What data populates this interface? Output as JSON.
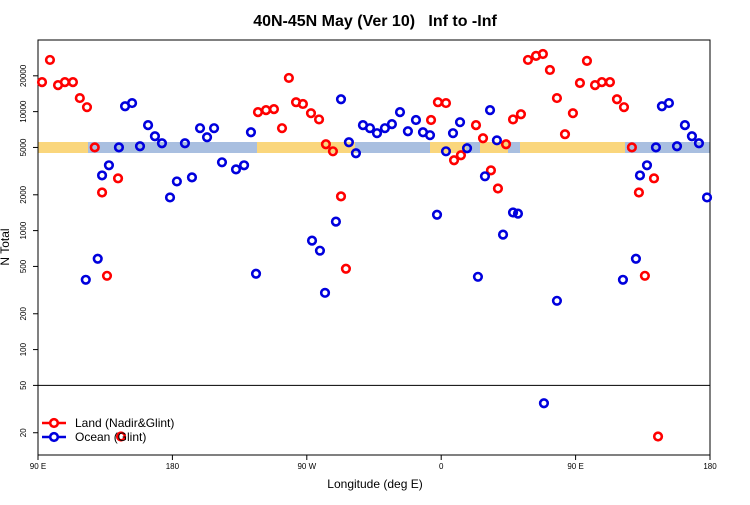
{
  "chart_data": {
    "type": "scatter",
    "title": "40N-45N May (Ver 10)   Inf to -Inf",
    "x_label": "Longitude (deg E)",
    "y_label": "N Total",
    "xlim": [
      90,
      540
    ],
    "xticks": [
      {
        "value": 90,
        "label": "90 E"
      },
      180,
      {
        "value": 270,
        "label": "90 W"
      },
      {
        "value": 360,
        "label": "0"
      },
      {
        "value": 450,
        "label": "90 E"
      },
      {
        "value": 540,
        "label": "180"
      }
    ],
    "ylim": [
      13,
      40000
    ],
    "y_log": true,
    "yticks": [
      20,
      50,
      100,
      200,
      500,
      1000,
      2000,
      5000,
      10000,
      20000
    ],
    "hline": 50,
    "legend_position": "bottomleft",
    "series": [
      {
        "name": "Land (Nadir&Glint)",
        "color": "#ff0000",
        "x": [
          92.7,
          98,
          103.4,
          108,
          113.4,
          118,
          122.8,
          128,
          132.9,
          136.2,
          143.6,
          145.6,
          237.3,
          242.7,
          248,
          253.4,
          258,
          262.8,
          267.4,
          272.8,
          278.2,
          282.8,
          287.5,
          292.9,
          296.2,
          353.2,
          357.8,
          363.2,
          368.6,
          373.2,
          383.3,
          388,
          393.3,
          398,
          403.4,
          408.1,
          413.4,
          418.1,
          423.5,
          428.1,
          432.8,
          437.5,
          442.9,
          448.2,
          452.9,
          457.6,
          463,
          467.6,
          473,
          477.7,
          482.4,
          487.7,
          492.4,
          496.4,
          502.5,
          505.2
        ],
        "values": [
          17700,
          27200,
          16700,
          17700,
          17700,
          13000,
          10900,
          5010,
          2090,
          417,
          2750,
          18.6,
          9900,
          10300,
          10500,
          7260,
          19200,
          12000,
          11600,
          9700,
          8600,
          5320,
          4640,
          1940,
          478,
          8500,
          12000,
          11800,
          3900,
          4300,
          7700,
          5970,
          3210,
          2260,
          5320,
          8600,
          9500,
          27200,
          29400,
          30500,
          22400,
          13000,
          6460,
          9700,
          17400,
          26700,
          16700,
          17700,
          17700,
          12700,
          10900,
          5010,
          2090,
          417,
          2750,
          18.6
        ]
      },
      {
        "name": "Ocean (Glint)",
        "color": "#0000dd",
        "x": [
          122,
          130,
          132.9,
          137.5,
          144.2,
          148.3,
          153,
          158.3,
          163.7,
          168.3,
          173,
          178.4,
          183,
          188.4,
          193.1,
          198.5,
          203.2,
          207.9,
          213.2,
          222.6,
          228,
          232.6,
          236,
          273.5,
          278.8,
          282.2,
          289.5,
          292.9,
          298.2,
          302.9,
          307.6,
          312.3,
          317,
          322.3,
          327,
          332.4,
          337.7,
          343.1,
          347.8,
          352.5,
          357.2,
          363.2,
          367.9,
          372.6,
          377.3,
          384.6,
          389.3,
          392.7,
          397.3,
          401.4,
          408.1,
          411.4,
          428.8,
          437.5,
          481.7,
          490.4,
          493.1,
          497.8,
          503.8,
          507.8,
          512.5,
          517.9,
          523.2,
          527.9,
          532.6,
          538
        ],
        "values": [
          386,
          580,
          2910,
          3540,
          5010,
          11100,
          11800,
          5120,
          7700,
          6210,
          5420,
          1900,
          2590,
          5420,
          2800,
          7260,
          6090,
          7260,
          3750,
          3270,
          3540,
          6710,
          434,
          824,
          678,
          300,
          1190,
          12700,
          5530,
          4470,
          7700,
          7260,
          6590,
          7260,
          7850,
          9900,
          6840,
          8500,
          6710,
          6340,
          1360,
          4640,
          6590,
          8150,
          4920,
          409,
          2860,
          10300,
          5740,
          925,
          1420,
          1390,
          35.4,
          257,
          386,
          580,
          2910,
          3540,
          5010,
          11100,
          11800,
          5120,
          7700,
          6210,
          5420,
          1900
        ]
      }
    ]
  }
}
